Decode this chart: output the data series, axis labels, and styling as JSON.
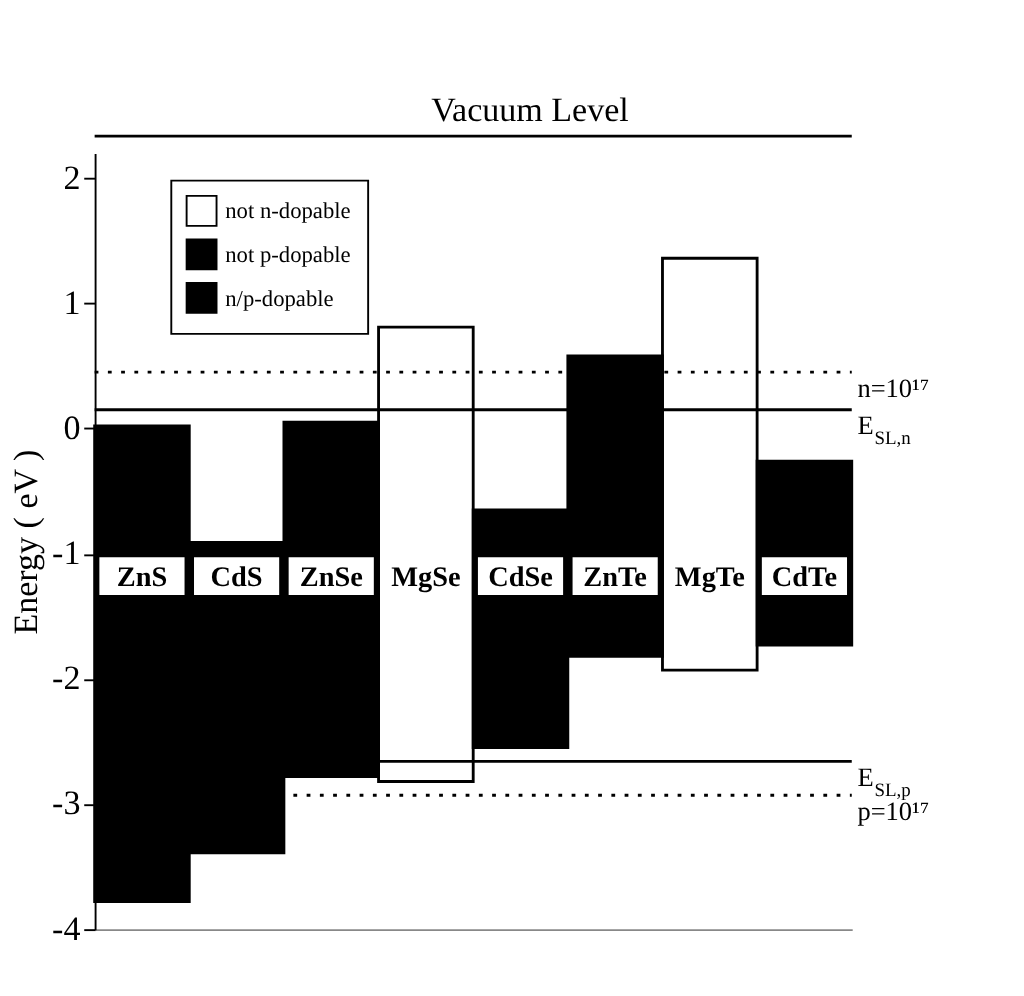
{
  "chart_data": {
    "type": "bar",
    "categories": [
      "ZnS",
      "CdS",
      "ZnSe",
      "MgSe",
      "CdSe",
      "ZnTe",
      "MgTe",
      "CdTe"
    ],
    "series": [
      {
        "name": "not n-dopable",
        "color": "#ffffff",
        "values": [
          null,
          null,
          null,
          3.63,
          null,
          null,
          3.29,
          null
        ],
        "base": [
          null,
          null,
          null,
          -2.82,
          null,
          null,
          -1.93,
          null
        ]
      },
      {
        "name": "not p-dopable",
        "color": "#000000",
        "values": [
          3.8,
          2.48,
          2.83,
          null,
          1.9,
          null,
          null,
          null
        ],
        "base": [
          -3.78,
          -3.39,
          -2.78,
          null,
          -2.55,
          null,
          null,
          null
        ]
      },
      {
        "name": "n/p-dopable",
        "color": "#000000",
        "values": [
          null,
          null,
          null,
          null,
          null,
          2.4,
          null,
          1.47
        ],
        "base": [
          null,
          null,
          null,
          null,
          null,
          -1.82,
          null,
          -1.73
        ]
      }
    ],
    "ylabel": "Energy ( eV )",
    "ylim": [
      -4,
      2.2
    ],
    "yticks": [
      -4,
      -3,
      -2,
      -1,
      0,
      1,
      2
    ],
    "ref_lines": [
      {
        "axis": "y",
        "value": 0.45,
        "line_style": "dotted"
      },
      {
        "axis": "y",
        "value": 0.15,
        "label": "E$_{SL,n}$",
        "line_style": "solid"
      },
      {
        "axis": "y",
        "value": -2.66,
        "label": "E$_{SL,p}$",
        "line_style": "solid"
      },
      {
        "axis": "y",
        "value": -2.93,
        "line_style": "dotted"
      }
    ],
    "annotations": [
      "Vacuum Level",
      "n=10¹⁷",
      "p=10¹⁷"
    ],
    "tick_labels": "y",
    "grid": false,
    "legend": "top left"
  }
}
